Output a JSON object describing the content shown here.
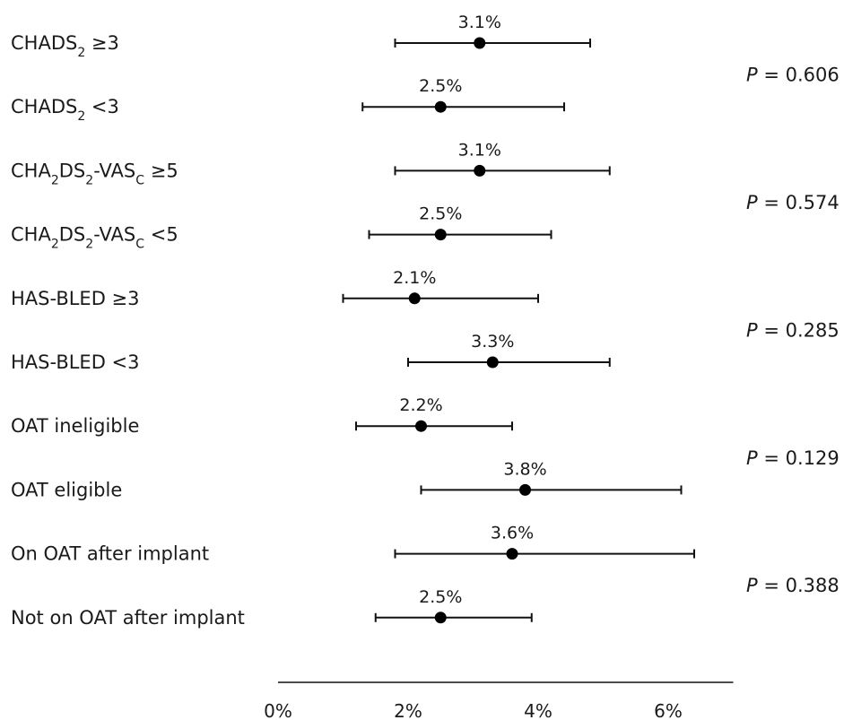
{
  "chart_data": {
    "type": "scatter",
    "xlim": [
      0,
      7
    ],
    "x_ticks": [
      0,
      2,
      4,
      6
    ],
    "x_tick_labels": [
      "0%",
      "2%",
      "4%",
      "6%"
    ],
    "grid": false,
    "rows": [
      {
        "label": "CHADS",
        "sub": "2",
        "suffix": " ≥3",
        "value": 3.1,
        "value_label": "3.1%",
        "low": 1.8,
        "high": 4.8
      },
      {
        "label": "CHADS",
        "sub": "2",
        "suffix": " <3",
        "value": 2.5,
        "value_label": "2.5%",
        "low": 1.3,
        "high": 4.4
      },
      {
        "label": "CHA",
        "sub": "2",
        "label2": "DS",
        "sub2": "2",
        "label3": "-VAS",
        "sub3": "C",
        "suffix": " ≥5",
        "value": 3.1,
        "value_label": "3.1%",
        "low": 1.8,
        "high": 5.1
      },
      {
        "label": "CHA",
        "sub": "2",
        "label2": "DS",
        "sub2": "2",
        "label3": "-VAS",
        "sub3": "C",
        "suffix": " <5",
        "value": 2.5,
        "value_label": "2.5%",
        "low": 1.4,
        "high": 4.2
      },
      {
        "label": "HAS-BLED ≥3",
        "value": 2.1,
        "value_label": "2.1%",
        "low": 1.0,
        "high": 4.0
      },
      {
        "label": "HAS-BLED <3",
        "value": 3.3,
        "value_label": "3.3%",
        "low": 2.0,
        "high": 5.1
      },
      {
        "label": "OAT ineligible",
        "value": 2.2,
        "value_label": "2.2%",
        "low": 1.2,
        "high": 3.6
      },
      {
        "label": "OAT eligible",
        "value": 3.8,
        "value_label": "3.8%",
        "low": 2.2,
        "high": 6.2
      },
      {
        "label": "On OAT after implant",
        "value": 3.6,
        "value_label": "3.6%",
        "low": 1.8,
        "high": 6.4
      },
      {
        "label": "Not on OAT after implant",
        "value": 2.5,
        "value_label": "2.5%",
        "low": 1.5,
        "high": 3.9
      }
    ],
    "p_values": [
      {
        "label": "P",
        "value": " = 0.606"
      },
      {
        "label": "P",
        "value": " = 0.574"
      },
      {
        "label": "P",
        "value": " = 0.285"
      },
      {
        "label": "P",
        "value": " = 0.129"
      },
      {
        "label": "P",
        "value": " = 0.388"
      }
    ]
  }
}
